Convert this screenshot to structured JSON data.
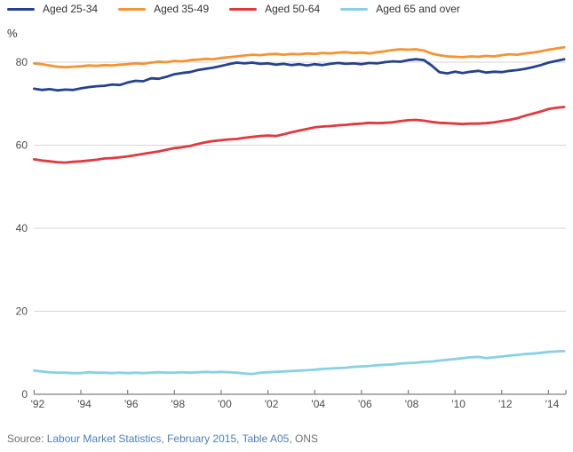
{
  "chart": {
    "unit_label": "%"
  },
  "colors": {
    "grid": "#D6D6D6",
    "axis": "#7F7F7F",
    "tick_label": "#4D4D4D",
    "legend_text": "#333333",
    "source_text": "#6D6E71",
    "link": "#4F7DBE"
  },
  "source": {
    "prefix": "Source: ",
    "link_text": "Labour Market Statistics, February 2015, Table A05",
    "suffix": ", ONS"
  },
  "chart_data": {
    "type": "line",
    "title": "",
    "xlabel": "",
    "ylabel": "%",
    "grid": "horizontal",
    "legend_position": "top",
    "xlim": [
      1992,
      2014.77
    ],
    "ylim": [
      0,
      87
    ],
    "y_ticks": [
      0,
      20,
      40,
      60,
      80
    ],
    "x_ticks": [
      {
        "x": 1992,
        "label": "'92"
      },
      {
        "x": 1994,
        "label": "'94"
      },
      {
        "x": 1996,
        "label": "'96"
      },
      {
        "x": 1998,
        "label": "'98"
      },
      {
        "x": 2000,
        "label": "'00"
      },
      {
        "x": 2002,
        "label": "'02"
      },
      {
        "x": 2004,
        "label": "'04"
      },
      {
        "x": 2006,
        "label": "'06"
      },
      {
        "x": 2008,
        "label": "'08"
      },
      {
        "x": 2010,
        "label": "'10"
      },
      {
        "x": 2012,
        "label": "'12"
      },
      {
        "x": 2014,
        "label": "'14"
      }
    ],
    "series": [
      {
        "name": "Aged 25-34",
        "color": "#26428F",
        "points": [
          [
            1992,
            73.6
          ],
          [
            1992.33,
            73.3
          ],
          [
            1992.67,
            73.5
          ],
          [
            1993,
            73.2
          ],
          [
            1993.33,
            73.4
          ],
          [
            1993.67,
            73.3
          ],
          [
            1994,
            73.7
          ],
          [
            1994.33,
            74.0
          ],
          [
            1994.67,
            74.2
          ],
          [
            1995,
            74.3
          ],
          [
            1995.33,
            74.6
          ],
          [
            1995.67,
            74.5
          ],
          [
            1996,
            75.1
          ],
          [
            1996.33,
            75.5
          ],
          [
            1996.67,
            75.4
          ],
          [
            1997,
            76.1
          ],
          [
            1997.33,
            76.0
          ],
          [
            1997.67,
            76.5
          ],
          [
            1998,
            77.1
          ],
          [
            1998.33,
            77.4
          ],
          [
            1998.67,
            77.6
          ],
          [
            1999,
            78.1
          ],
          [
            1999.33,
            78.4
          ],
          [
            1999.67,
            78.7
          ],
          [
            2000,
            79.1
          ],
          [
            2000.33,
            79.5
          ],
          [
            2000.67,
            79.9
          ],
          [
            2001,
            79.7
          ],
          [
            2001.33,
            79.9
          ],
          [
            2001.67,
            79.6
          ],
          [
            2002,
            79.7
          ],
          [
            2002.33,
            79.4
          ],
          [
            2002.67,
            79.6
          ],
          [
            2003,
            79.3
          ],
          [
            2003.33,
            79.5
          ],
          [
            2003.67,
            79.2
          ],
          [
            2004,
            79.5
          ],
          [
            2004.33,
            79.3
          ],
          [
            2004.67,
            79.6
          ],
          [
            2005,
            79.8
          ],
          [
            2005.33,
            79.6
          ],
          [
            2005.67,
            79.7
          ],
          [
            2006,
            79.5
          ],
          [
            2006.33,
            79.8
          ],
          [
            2006.67,
            79.7
          ],
          [
            2007,
            80.0
          ],
          [
            2007.33,
            80.2
          ],
          [
            2007.67,
            80.1
          ],
          [
            2008,
            80.5
          ],
          [
            2008.33,
            80.7
          ],
          [
            2008.67,
            80.5
          ],
          [
            2009,
            79.2
          ],
          [
            2009.33,
            77.6
          ],
          [
            2009.67,
            77.3
          ],
          [
            2010,
            77.7
          ],
          [
            2010.33,
            77.4
          ],
          [
            2010.67,
            77.7
          ],
          [
            2011,
            77.9
          ],
          [
            2011.33,
            77.5
          ],
          [
            2011.67,
            77.7
          ],
          [
            2012,
            77.6
          ],
          [
            2012.33,
            77.9
          ],
          [
            2012.67,
            78.1
          ],
          [
            2013,
            78.4
          ],
          [
            2013.33,
            78.8
          ],
          [
            2013.67,
            79.3
          ],
          [
            2014,
            79.9
          ],
          [
            2014.33,
            80.3
          ],
          [
            2014.67,
            80.7
          ]
        ]
      },
      {
        "name": "Aged 35-49",
        "color": "#F79331",
        "points": [
          [
            1992,
            79.7
          ],
          [
            1992.33,
            79.5
          ],
          [
            1992.67,
            79.2
          ],
          [
            1993,
            78.9
          ],
          [
            1993.33,
            78.8
          ],
          [
            1993.67,
            78.9
          ],
          [
            1994,
            79.0
          ],
          [
            1994.33,
            79.2
          ],
          [
            1994.67,
            79.1
          ],
          [
            1995,
            79.3
          ],
          [
            1995.33,
            79.2
          ],
          [
            1995.67,
            79.4
          ],
          [
            1996,
            79.5
          ],
          [
            1996.33,
            79.7
          ],
          [
            1996.67,
            79.6
          ],
          [
            1997,
            79.9
          ],
          [
            1997.33,
            80.1
          ],
          [
            1997.67,
            80.0
          ],
          [
            1998,
            80.3
          ],
          [
            1998.33,
            80.2
          ],
          [
            1998.67,
            80.5
          ],
          [
            1999,
            80.6
          ],
          [
            1999.33,
            80.8
          ],
          [
            1999.67,
            80.7
          ],
          [
            2000,
            81.0
          ],
          [
            2000.33,
            81.2
          ],
          [
            2000.67,
            81.4
          ],
          [
            2001,
            81.6
          ],
          [
            2001.33,
            81.8
          ],
          [
            2001.67,
            81.7
          ],
          [
            2002,
            81.9
          ],
          [
            2002.33,
            82.0
          ],
          [
            2002.67,
            81.8
          ],
          [
            2003,
            82.0
          ],
          [
            2003.33,
            81.9
          ],
          [
            2003.67,
            82.1
          ],
          [
            2004,
            82.0
          ],
          [
            2004.33,
            82.2
          ],
          [
            2004.67,
            82.1
          ],
          [
            2005,
            82.3
          ],
          [
            2005.33,
            82.4
          ],
          [
            2005.67,
            82.2
          ],
          [
            2006,
            82.3
          ],
          [
            2006.33,
            82.1
          ],
          [
            2006.67,
            82.4
          ],
          [
            2007,
            82.6
          ],
          [
            2007.33,
            82.9
          ],
          [
            2007.67,
            83.1
          ],
          [
            2008,
            83.0
          ],
          [
            2008.33,
            83.1
          ],
          [
            2008.67,
            82.8
          ],
          [
            2009,
            82.1
          ],
          [
            2009.33,
            81.7
          ],
          [
            2009.67,
            81.4
          ],
          [
            2010,
            81.3
          ],
          [
            2010.33,
            81.2
          ],
          [
            2010.67,
            81.4
          ],
          [
            2011,
            81.3
          ],
          [
            2011.33,
            81.5
          ],
          [
            2011.67,
            81.4
          ],
          [
            2012,
            81.7
          ],
          [
            2012.33,
            81.9
          ],
          [
            2012.67,
            81.8
          ],
          [
            2013,
            82.1
          ],
          [
            2013.33,
            82.3
          ],
          [
            2013.67,
            82.6
          ],
          [
            2014,
            83.0
          ],
          [
            2014.33,
            83.3
          ],
          [
            2014.67,
            83.6
          ]
        ]
      },
      {
        "name": "Aged 50-64",
        "color": "#E0393E",
        "points": [
          [
            1992,
            56.6
          ],
          [
            1992.33,
            56.3
          ],
          [
            1992.67,
            56.1
          ],
          [
            1993,
            55.9
          ],
          [
            1993.33,
            55.8
          ],
          [
            1993.67,
            56.0
          ],
          [
            1994,
            56.1
          ],
          [
            1994.33,
            56.3
          ],
          [
            1994.67,
            56.5
          ],
          [
            1995,
            56.8
          ],
          [
            1995.33,
            56.9
          ],
          [
            1995.67,
            57.1
          ],
          [
            1996,
            57.3
          ],
          [
            1996.33,
            57.6
          ],
          [
            1996.67,
            57.9
          ],
          [
            1997,
            58.2
          ],
          [
            1997.33,
            58.5
          ],
          [
            1997.67,
            58.9
          ],
          [
            1998,
            59.3
          ],
          [
            1998.33,
            59.5
          ],
          [
            1998.67,
            59.8
          ],
          [
            1999,
            60.3
          ],
          [
            1999.33,
            60.7
          ],
          [
            1999.67,
            61.0
          ],
          [
            2000,
            61.2
          ],
          [
            2000.33,
            61.4
          ],
          [
            2000.67,
            61.5
          ],
          [
            2001,
            61.8
          ],
          [
            2001.33,
            62.0
          ],
          [
            2001.67,
            62.2
          ],
          [
            2002,
            62.3
          ],
          [
            2002.33,
            62.2
          ],
          [
            2002.67,
            62.6
          ],
          [
            2003,
            63.1
          ],
          [
            2003.33,
            63.5
          ],
          [
            2003.67,
            63.9
          ],
          [
            2004,
            64.3
          ],
          [
            2004.33,
            64.5
          ],
          [
            2004.67,
            64.6
          ],
          [
            2005,
            64.8
          ],
          [
            2005.33,
            64.9
          ],
          [
            2005.67,
            65.1
          ],
          [
            2006,
            65.2
          ],
          [
            2006.33,
            65.4
          ],
          [
            2006.67,
            65.3
          ],
          [
            2007,
            65.4
          ],
          [
            2007.33,
            65.5
          ],
          [
            2007.67,
            65.8
          ],
          [
            2008,
            66.0
          ],
          [
            2008.33,
            66.1
          ],
          [
            2008.67,
            65.9
          ],
          [
            2009,
            65.6
          ],
          [
            2009.33,
            65.4
          ],
          [
            2009.67,
            65.3
          ],
          [
            2010,
            65.2
          ],
          [
            2010.33,
            65.1
          ],
          [
            2010.67,
            65.2
          ],
          [
            2011,
            65.2
          ],
          [
            2011.33,
            65.3
          ],
          [
            2011.67,
            65.5
          ],
          [
            2012,
            65.8
          ],
          [
            2012.33,
            66.1
          ],
          [
            2012.67,
            66.5
          ],
          [
            2013,
            67.1
          ],
          [
            2013.33,
            67.6
          ],
          [
            2013.67,
            68.1
          ],
          [
            2014,
            68.7
          ],
          [
            2014.33,
            69.0
          ],
          [
            2014.67,
            69.2
          ]
        ]
      },
      {
        "name": "Aged 65 and over",
        "color": "#8AD0E4",
        "points": [
          [
            1992,
            5.7
          ],
          [
            1992.33,
            5.5
          ],
          [
            1992.67,
            5.3
          ],
          [
            1993,
            5.2
          ],
          [
            1993.33,
            5.2
          ],
          [
            1993.67,
            5.1
          ],
          [
            1994,
            5.1
          ],
          [
            1994.33,
            5.3
          ],
          [
            1994.67,
            5.2
          ],
          [
            1995,
            5.2
          ],
          [
            1995.33,
            5.1
          ],
          [
            1995.67,
            5.2
          ],
          [
            1996,
            5.1
          ],
          [
            1996.33,
            5.2
          ],
          [
            1996.67,
            5.1
          ],
          [
            1997,
            5.2
          ],
          [
            1997.33,
            5.3
          ],
          [
            1997.67,
            5.2
          ],
          [
            1998,
            5.2
          ],
          [
            1998.33,
            5.3
          ],
          [
            1998.67,
            5.2
          ],
          [
            1999,
            5.3
          ],
          [
            1999.33,
            5.4
          ],
          [
            1999.67,
            5.3
          ],
          [
            2000,
            5.4
          ],
          [
            2000.33,
            5.3
          ],
          [
            2000.67,
            5.2
          ],
          [
            2001,
            5.0
          ],
          [
            2001.33,
            4.9
          ],
          [
            2001.67,
            5.2
          ],
          [
            2002,
            5.3
          ],
          [
            2002.33,
            5.4
          ],
          [
            2002.67,
            5.5
          ],
          [
            2003,
            5.6
          ],
          [
            2003.33,
            5.7
          ],
          [
            2003.67,
            5.8
          ],
          [
            2004,
            5.9
          ],
          [
            2004.33,
            6.1
          ],
          [
            2004.67,
            6.2
          ],
          [
            2005,
            6.3
          ],
          [
            2005.33,
            6.4
          ],
          [
            2005.67,
            6.6
          ],
          [
            2006,
            6.7
          ],
          [
            2006.33,
            6.8
          ],
          [
            2006.67,
            7.0
          ],
          [
            2007,
            7.1
          ],
          [
            2007.33,
            7.2
          ],
          [
            2007.67,
            7.4
          ],
          [
            2008,
            7.5
          ],
          [
            2008.33,
            7.6
          ],
          [
            2008.67,
            7.8
          ],
          [
            2009,
            7.9
          ],
          [
            2009.33,
            8.1
          ],
          [
            2009.67,
            8.3
          ],
          [
            2010,
            8.5
          ],
          [
            2010.33,
            8.7
          ],
          [
            2010.67,
            8.9
          ],
          [
            2011,
            9.0
          ],
          [
            2011.33,
            8.7
          ],
          [
            2011.67,
            8.9
          ],
          [
            2012,
            9.1
          ],
          [
            2012.33,
            9.3
          ],
          [
            2012.67,
            9.5
          ],
          [
            2013,
            9.7
          ],
          [
            2013.33,
            9.8
          ],
          [
            2013.67,
            10.0
          ],
          [
            2014,
            10.2
          ],
          [
            2014.33,
            10.3
          ],
          [
            2014.67,
            10.4
          ]
        ]
      }
    ]
  }
}
